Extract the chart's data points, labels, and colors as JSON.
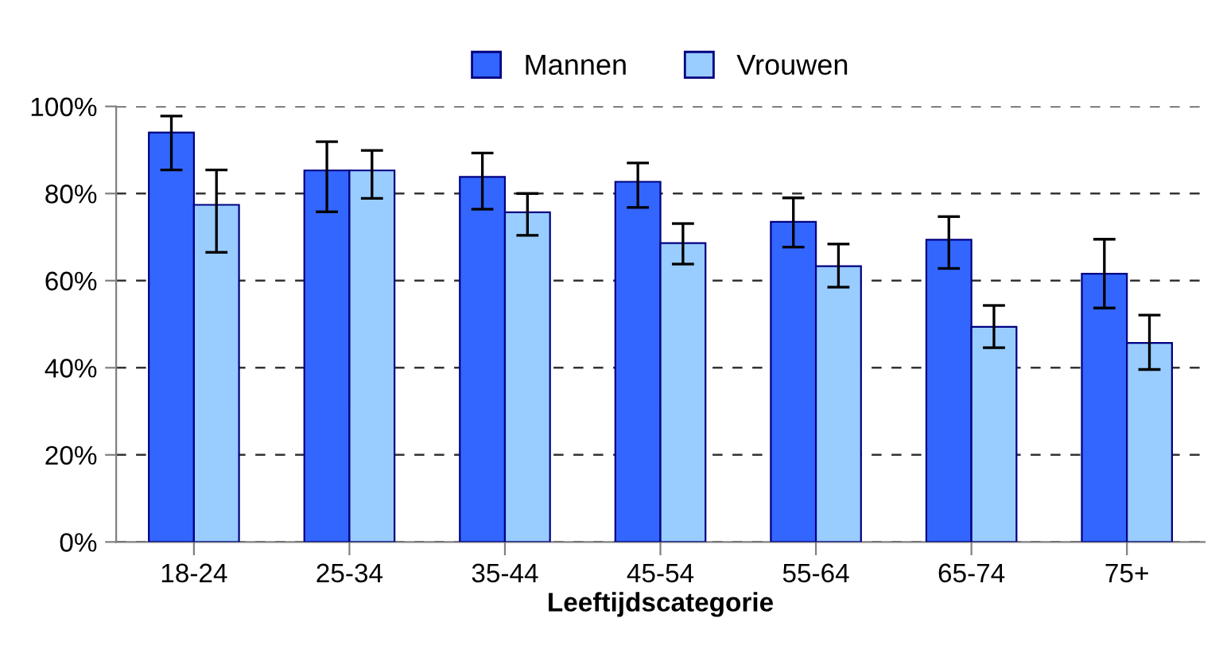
{
  "chart_data": {
    "type": "bar",
    "xlabel": "Leeftijdscategorie",
    "categories": [
      "18-24",
      "25-34",
      "35-44",
      "45-54",
      "55-64",
      "65-74",
      "75+"
    ],
    "series": [
      {
        "name": "Mannen",
        "color": "#3366ff",
        "values": [
          94.0,
          85.3,
          83.8,
          82.7,
          73.5,
          69.4,
          61.6
        ],
        "errors": [
          [
            85.4,
            97.8
          ],
          [
            75.8,
            91.9
          ],
          [
            76.4,
            89.3
          ],
          [
            76.8,
            87.0
          ],
          [
            67.7,
            79.0
          ],
          [
            62.8,
            74.7
          ],
          [
            53.7,
            69.5
          ]
        ]
      },
      {
        "name": "Vrouwen",
        "color": "#99ccff",
        "values": [
          77.4,
          85.3,
          75.7,
          68.6,
          63.3,
          49.4,
          45.7
        ],
        "errors": [
          [
            66.5,
            85.4
          ],
          [
            78.9,
            89.9
          ],
          [
            70.4,
            80.0
          ],
          [
            63.8,
            73.1
          ],
          [
            58.5,
            68.4
          ],
          [
            44.6,
            54.3
          ],
          [
            39.6,
            52.1
          ]
        ]
      }
    ],
    "ylim": [
      0,
      100
    ],
    "yticks": [
      {
        "value": 0,
        "label": "0%"
      },
      {
        "value": 20,
        "label": "20%"
      },
      {
        "value": 40,
        "label": "40%"
      },
      {
        "value": 60,
        "label": "60%"
      },
      {
        "value": 80,
        "label": "80%"
      },
      {
        "value": 100,
        "label": "100%"
      }
    ],
    "grid": "y",
    "line_style": "dashed",
    "legend": "top"
  }
}
